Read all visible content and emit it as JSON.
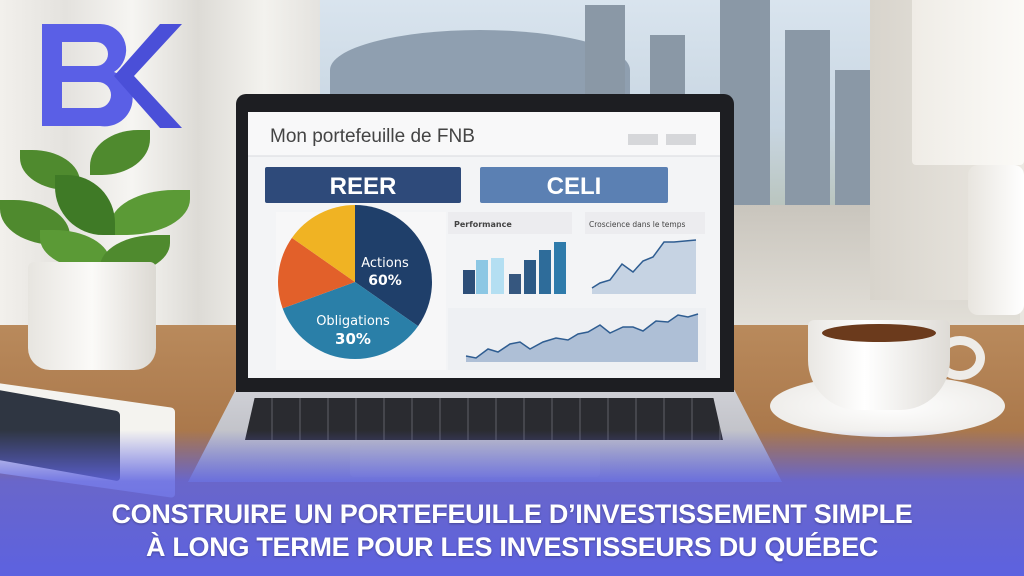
{
  "logo": {
    "text": "BK",
    "color": "#5a5fe6"
  },
  "screen": {
    "title": "Mon portefeuille de FNB",
    "buttons": [
      {
        "label": "REER",
        "color": "#2e4a7a"
      },
      {
        "label": "CELI",
        "color": "#5b80b3"
      }
    ],
    "pie": {
      "slices": [
        {
          "label": "Actions",
          "value_label": "60%",
          "color": "#1f3f6a"
        },
        {
          "label": "Obligations",
          "value_label": "30%",
          "color": "#2a7fa8"
        },
        {
          "label": "",
          "value_label": "",
          "color": "#e2602a"
        },
        {
          "label": "",
          "value_label": "",
          "color": "#f0b323"
        }
      ]
    },
    "performance_panel": {
      "title": "Performance"
    },
    "growth_panel": {
      "title": "Croscience dans le temps"
    }
  },
  "headline": {
    "line1": "CONSTRUIRE UN PORTEFEUILLE D’INVESTISSEMENT SIMPLE",
    "line2": "À LONG TERME POUR LES INVESTISSEURS DU QUÉBEC",
    "band_color": "#5d62e0"
  }
}
